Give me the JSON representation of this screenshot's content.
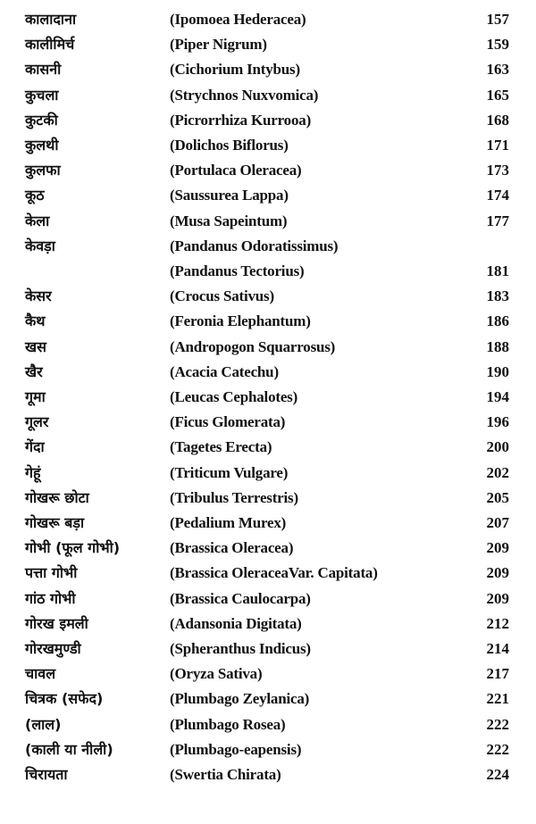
{
  "index": {
    "entries": [
      {
        "hindi": "कालादाना",
        "latin": "(Ipomoea Hederacea)",
        "page": 157
      },
      {
        "hindi": "कालीमिर्च",
        "latin": "(Piper Nigrum)",
        "page": 159
      },
      {
        "hindi": "कासनी",
        "latin": "(Cichorium Intybus)",
        "page": 163
      },
      {
        "hindi": "कुचला",
        "latin": "(Strychnos Nuxvomica)",
        "page": 165
      },
      {
        "hindi": "कुटकी",
        "latin": "(Picrorrhiza Kurrooa)",
        "page": 168
      },
      {
        "hindi": "कुलथी",
        "latin": "(Dolichos Biflorus)",
        "page": 171
      },
      {
        "hindi": "कुलफा",
        "latin": "(Portulaca Oleracea)",
        "page": 173
      },
      {
        "hindi": "कूठ",
        "latin": "(Saussurea Lappa)",
        "page": 174
      },
      {
        "hindi": "केला",
        "latin": "(Musa Sapeintum)",
        "page": 177
      },
      {
        "hindi": "केवड़ा",
        "latin": "(Pandanus Odoratissimus)"
      },
      {
        "latin": "(Pandanus Tectorius)",
        "page": 181
      },
      {
        "hindi": "केसर",
        "latin": "(Crocus Sativus)",
        "page": 183
      },
      {
        "hindi": "कैथ",
        "latin": "(Feronia Elephantum)",
        "page": 186
      },
      {
        "hindi": "खस",
        "latin": "(Andropogon Squarrosus)",
        "page": 188
      },
      {
        "hindi": "खैर",
        "latin": "(Acacia Catechu)",
        "page": 190
      },
      {
        "hindi": "गूमा",
        "latin": "(Leucas Cephalotes)",
        "page": 194
      },
      {
        "hindi": "गूलर",
        "latin": "(Ficus Glomerata)",
        "page": 196
      },
      {
        "hindi": "गेंदा",
        "latin": "(Tagetes Erecta)",
        "page": 200
      },
      {
        "hindi": "गेहूं",
        "latin": "(Triticum Vulgare)",
        "page": 202
      },
      {
        "hindi": "गोखरू छोटा",
        "latin": "(Tribulus Terrestris)",
        "page": 205
      },
      {
        "hindi": "गोखरू बड़ा",
        "latin": "(Pedalium Murex)",
        "page": 207
      },
      {
        "hindi": "गोभी (फूल गोभी)",
        "latin": "(Brassica Oleracea)",
        "page": 209
      },
      {
        "hindi": "पत्ता गोभी",
        "latin": "(Brassica OleraceaVar. Capitata)",
        "page": 209
      },
      {
        "hindi": "गांठ गोभी",
        "latin": "(Brassica Caulocarpa)",
        "page": 209
      },
      {
        "hindi": "गोरख इमली",
        "latin": "(Adansonia Digitata)",
        "page": 212
      },
      {
        "hindi": "गोरखमुण्डी",
        "latin": "(Spheranthus Indicus)",
        "page": 214
      },
      {
        "hindi": "चावल",
        "latin": "(Oryza Sativa)",
        "page": 217
      },
      {
        "hindi": "चित्रक (सफेद)",
        "latin": "(Plumbago Zeylanica)",
        "page": 221
      },
      {
        "hindi": "(लाल)",
        "latin": "(Plumbago Rosea)",
        "page": 222
      },
      {
        "hindi": "(काली या नीली)",
        "latin": "(Plumbago-eapensis)",
        "page": 222
      },
      {
        "hindi": "चिरायता",
        "latin": "(Swertia Chirata)",
        "page": 224
      }
    ]
  }
}
